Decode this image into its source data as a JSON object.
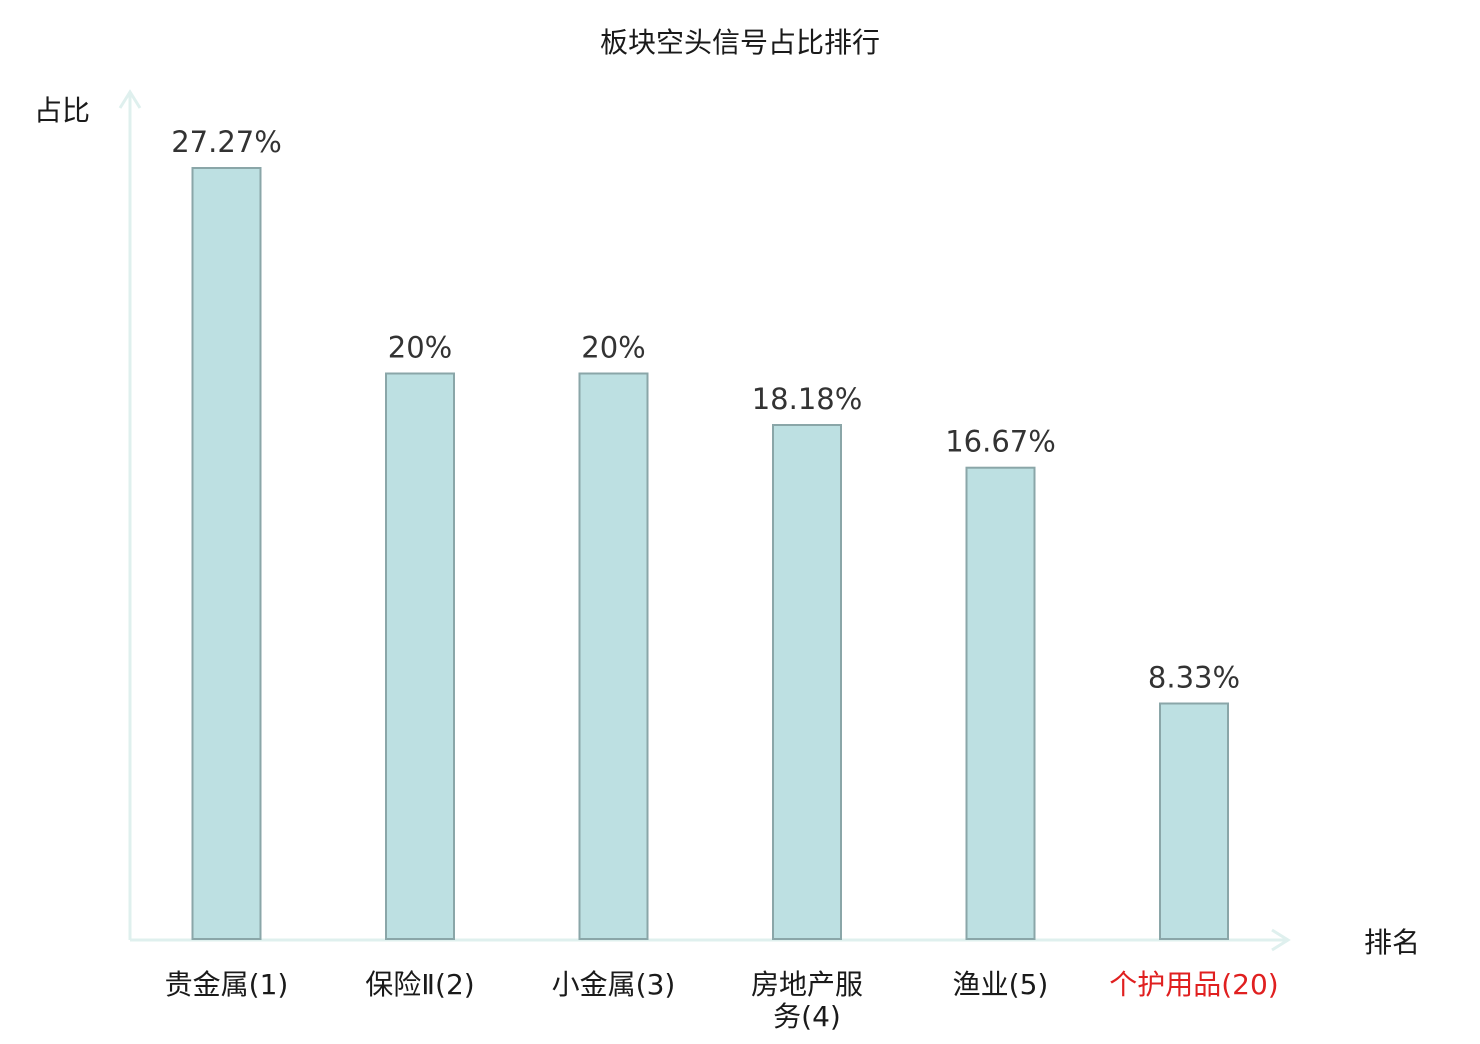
{
  "chart_data": {
    "type": "bar",
    "title": "板块空头信号占比排行",
    "xlabel": "排名",
    "ylabel": "占比",
    "ylim": [
      0,
      27.27
    ],
    "grid": false,
    "categories": [
      [
        "贵金属(1)"
      ],
      [
        "保险Ⅱ(2)"
      ],
      [
        "小金属(3)"
      ],
      [
        "房地产服",
        "务(4)"
      ],
      [
        "渔业(5)"
      ],
      [
        "个护用品(20)"
      ]
    ],
    "values": [
      27.27,
      20,
      20,
      18.18,
      16.67,
      8.33
    ],
    "data_labels": [
      "27.27%",
      "20%",
      "20%",
      "18.18%",
      "16.67%",
      "8.33%"
    ],
    "highlight_index": 5
  },
  "colors": {
    "bar_fill": "#bde0e2",
    "bar_stroke": "#8aa6a8",
    "axis": "#dff0ee",
    "label_text": "#333333",
    "category_text": "#1a1a1a",
    "highlight_text": "#e02020"
  }
}
